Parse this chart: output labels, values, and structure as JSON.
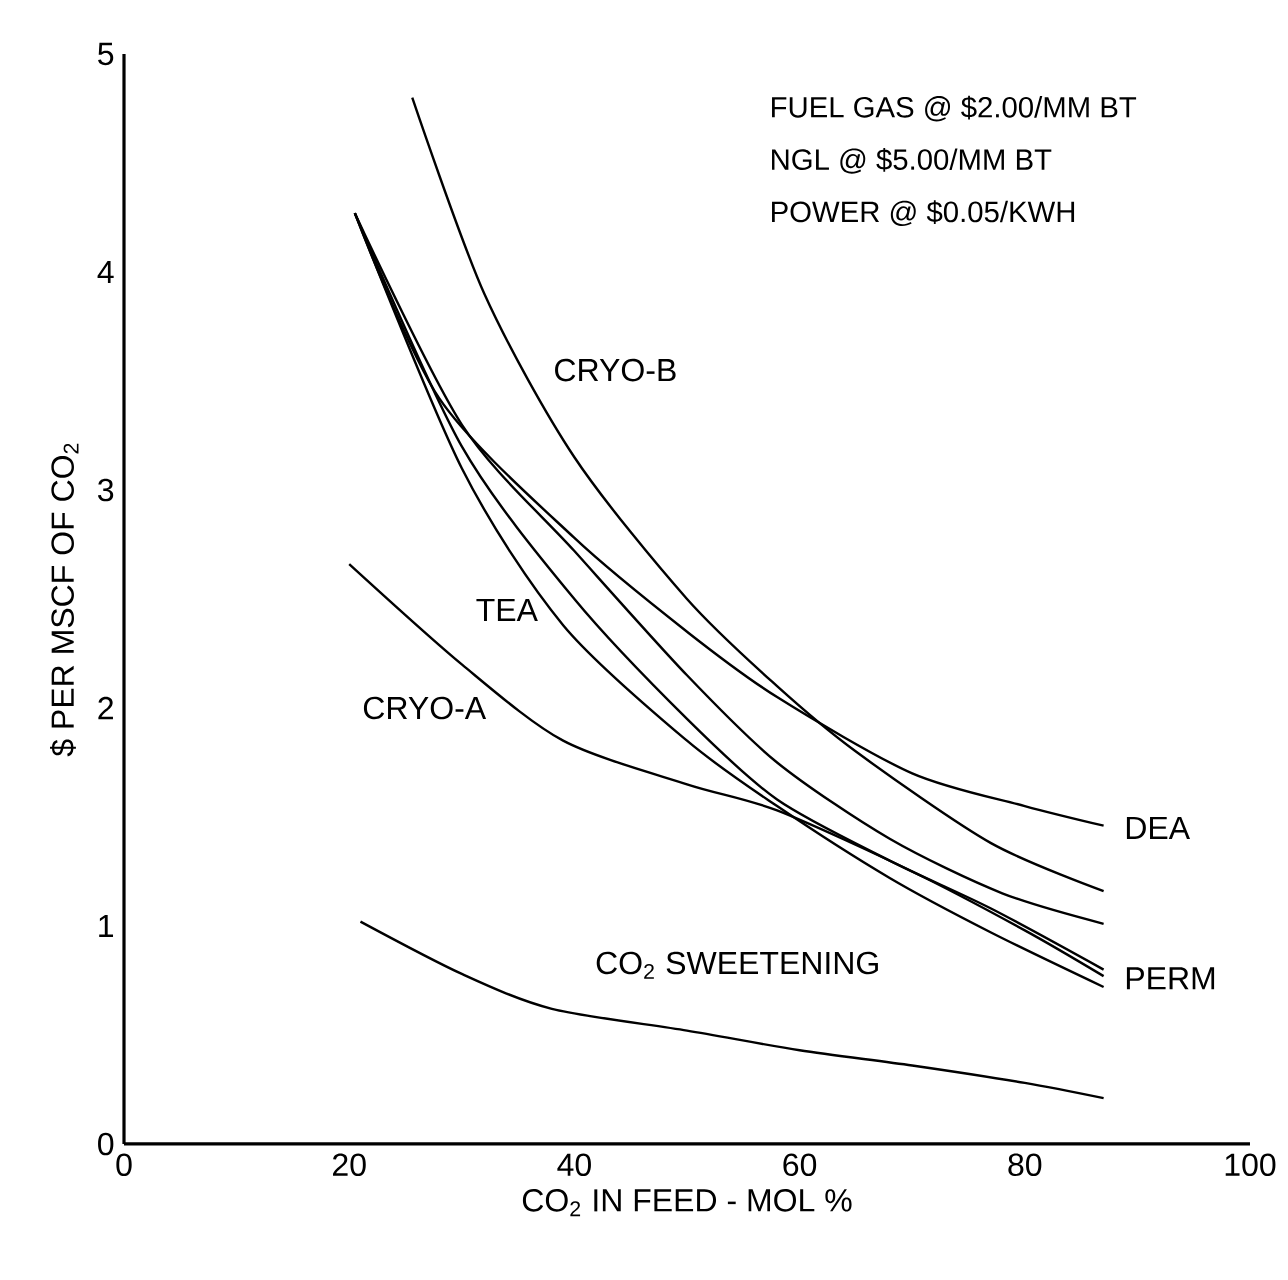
{
  "chart_data": {
    "type": "line",
    "xlabel": "CO$_{2}$ IN FEED - MOL %",
    "ylabel": "$ PER MSCF OF CO$_{2}$",
    "xlim": [
      0,
      100
    ],
    "ylim": [
      0,
      5
    ],
    "xticks": [
      0,
      20,
      40,
      60,
      80,
      100
    ],
    "yticks": [
      0,
      1,
      2,
      3,
      4,
      5
    ],
    "grid": false,
    "legend": false,
    "marker": "none",
    "line_style": "solid",
    "annotations": [
      "FUEL GAS @ $2.00/MM BT",
      "NGL @ $5.00/MM BT",
      "POWER @ $0.05/KWH"
    ],
    "series": [
      {
        "name": "CRYO-B",
        "color": "#000000",
        "x": [
          25.6,
          32,
          40,
          50,
          58,
          65,
          77,
          87
        ],
        "values": [
          4.8,
          3.9,
          3.15,
          2.5,
          2.1,
          1.8,
          1.38,
          1.16
        ]
      },
      {
        "name": "DEA",
        "color": "#000000",
        "x": [
          20.5,
          28,
          40,
          50,
          58,
          70,
          80,
          87
        ],
        "values": [
          4.27,
          3.42,
          2.78,
          2.35,
          2.05,
          1.7,
          1.55,
          1.46
        ]
      },
      {
        "color": "#000000",
        "x": [
          20.5,
          30,
          40,
          50,
          58,
          68,
          78,
          87
        ],
        "values": [
          4.27,
          3.3,
          2.72,
          2.15,
          1.75,
          1.4,
          1.15,
          1.01
        ]
      },
      {
        "name": "PERM",
        "color": "#000000",
        "x": [
          20.5,
          30,
          40,
          50,
          58,
          68,
          77,
          87
        ],
        "values": [
          4.27,
          3.2,
          2.5,
          1.95,
          1.58,
          1.3,
          1.08,
          0.8
        ]
      },
      {
        "name": "TEA",
        "color": "#000000",
        "x": [
          20.5,
          30,
          39,
          50,
          58,
          68,
          77,
          87
        ],
        "values": [
          4.27,
          3.1,
          2.38,
          1.85,
          1.55,
          1.22,
          0.97,
          0.72
        ]
      },
      {
        "name": "CRYO-A",
        "color": "#000000",
        "x": [
          20,
          30,
          39,
          50,
          58,
          70,
          80,
          87
        ],
        "values": [
          2.66,
          2.2,
          1.85,
          1.65,
          1.53,
          1.25,
          0.98,
          0.77
        ]
      },
      {
        "name": "CO$_{2}$ SWEETENING",
        "color": "#000000",
        "x": [
          21,
          30,
          38,
          50,
          60,
          70,
          80,
          87
        ],
        "values": [
          1.02,
          0.78,
          0.62,
          0.52,
          0.43,
          0.36,
          0.28,
          0.21
        ]
      }
    ]
  }
}
